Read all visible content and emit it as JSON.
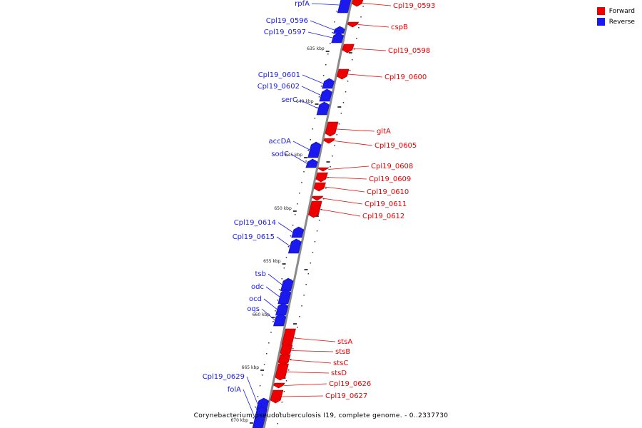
{
  "caption": "Corynebacterium pseudotuberculosis I19, complete genome. - 0..2337730",
  "legend": [
    {
      "label": "Forward",
      "color": "#ee0000"
    },
    {
      "label": "Reverse",
      "color": "#1a1aee"
    }
  ],
  "colors": {
    "forward": "#ee0000",
    "reverse": "#1a1aee",
    "axis": "#8a8a8a"
  },
  "kbp_labels": [
    "635 kbp",
    "640 kbp",
    "645 kbp",
    "650 kbp",
    "655 kbp",
    "660 kbp",
    "665 kbp",
    "670 kbp"
  ],
  "genes": [
    {
      "name": "rpfA",
      "strand": "reverse"
    },
    {
      "name": "Cpl19_0593",
      "strand": "forward"
    },
    {
      "name": "cspB",
      "strand": "forward"
    },
    {
      "name": "Cpl19_0596",
      "strand": "reverse"
    },
    {
      "name": "Cpl19_0597",
      "strand": "reverse"
    },
    {
      "name": "Cpl19_0598",
      "strand": "forward"
    },
    {
      "name": "Cpl19_0600",
      "strand": "forward"
    },
    {
      "name": "Cpl19_0601",
      "strand": "reverse"
    },
    {
      "name": "Cpl19_0602",
      "strand": "reverse"
    },
    {
      "name": "serC",
      "strand": "reverse"
    },
    {
      "name": "gltA",
      "strand": "forward"
    },
    {
      "name": "accDA",
      "strand": "reverse"
    },
    {
      "name": "Cpl19_0605",
      "strand": "forward"
    },
    {
      "name": "sodC",
      "strand": "reverse"
    },
    {
      "name": "Cpl19_0608",
      "strand": "forward"
    },
    {
      "name": "Cpl19_0609",
      "strand": "forward"
    },
    {
      "name": "Cpl19_0610",
      "strand": "forward"
    },
    {
      "name": "Cpl19_0611",
      "strand": "forward"
    },
    {
      "name": "Cpl19_0612",
      "strand": "forward"
    },
    {
      "name": "Cpl19_0614",
      "strand": "reverse"
    },
    {
      "name": "Cpl19_0615",
      "strand": "reverse"
    },
    {
      "name": "tsb",
      "strand": "reverse"
    },
    {
      "name": "odc",
      "strand": "reverse"
    },
    {
      "name": "ocd",
      "strand": "reverse"
    },
    {
      "name": "oqs",
      "strand": "reverse"
    },
    {
      "name": "stsA",
      "strand": "forward"
    },
    {
      "name": "stsB",
      "strand": "forward"
    },
    {
      "name": "stsC",
      "strand": "forward"
    },
    {
      "name": "stsD",
      "strand": "forward"
    },
    {
      "name": "Cpl19_0626",
      "strand": "forward"
    },
    {
      "name": "Cpl19_0627",
      "strand": "forward"
    },
    {
      "name": "Cpl19_0629",
      "strand": "reverse"
    },
    {
      "name": "folA",
      "strand": "reverse"
    }
  ]
}
